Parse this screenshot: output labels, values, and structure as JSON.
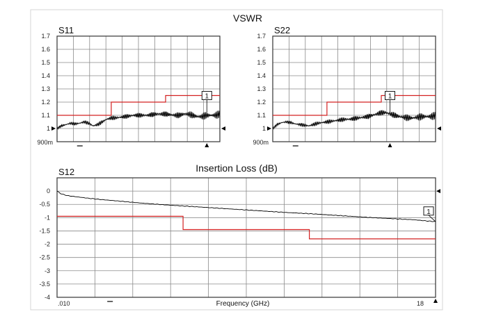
{
  "colors": {
    "frame": "#333333",
    "grid": "#8a8a8a",
    "trace": "#000000",
    "limit": "#d32020"
  },
  "vswr_title": "VSWR",
  "insertion_title": "Insertion Loss (dB)",
  "chart_data": [
    {
      "type": "line",
      "title": "S11",
      "ylim": [
        0.9,
        1.7
      ],
      "y_ticks": [
        "1.7",
        "1.6",
        "1.5",
        "1.4",
        "1.3",
        "1.2",
        "1.1",
        "1"
      ],
      "y_bottom_label": "900m",
      "grid": true,
      "marker_label": "1",
      "x_range": [
        0.01,
        18
      ],
      "series": [
        {
          "x": [
            0.01,
            0.5,
            1,
            1.5,
            2,
            2.5,
            3,
            3.5,
            4,
            4.5,
            5,
            5.5,
            6,
            6.5,
            7,
            7.5,
            8,
            8.5,
            9,
            9.5,
            10,
            10.5,
            11,
            11.5,
            12,
            12.5,
            13,
            13.5,
            14,
            14.5,
            15,
            15.5,
            16,
            16.5,
            17,
            17.5,
            18
          ],
          "values": [
            1.0,
            1.02,
            1.03,
            1.04,
            1.035,
            1.04,
            1.05,
            1.04,
            1.02,
            1.03,
            1.05,
            1.07,
            1.08,
            1.08,
            1.085,
            1.09,
            1.095,
            1.1,
            1.1,
            1.1,
            1.1,
            1.105,
            1.11,
            1.11,
            1.11,
            1.105,
            1.1,
            1.1,
            1.11,
            1.11,
            1.1,
            1.09,
            1.09,
            1.1,
            1.1,
            1.1,
            1.11
          ],
          "ripple": 0.03
        }
      ],
      "limit": {
        "x": [
          0.01,
          6,
          6,
          12,
          12,
          18
        ],
        "values": [
          1.1,
          1.1,
          1.2,
          1.2,
          1.25,
          1.25
        ]
      }
    },
    {
      "type": "line",
      "title": "S22",
      "ylim": [
        0.9,
        1.7
      ],
      "y_ticks": [
        "1.7",
        "1.6",
        "1.5",
        "1.4",
        "1.3",
        "1.2",
        "1.1",
        "1"
      ],
      "y_bottom_label": "900m",
      "grid": true,
      "marker_label": "1",
      "x_range": [
        0.01,
        18
      ],
      "series": [
        {
          "x": [
            0.01,
            0.5,
            1,
            1.5,
            2,
            2.5,
            3,
            3.5,
            4,
            4.5,
            5,
            5.5,
            6,
            6.5,
            7,
            7.5,
            8,
            8.5,
            9,
            9.5,
            10,
            10.5,
            11,
            11.5,
            12,
            12.5,
            13,
            13.5,
            14,
            14.5,
            15,
            15.5,
            16,
            16.5,
            17,
            17.5,
            18
          ],
          "values": [
            1.0,
            1.03,
            1.045,
            1.05,
            1.045,
            1.035,
            1.03,
            1.025,
            1.02,
            1.03,
            1.04,
            1.045,
            1.05,
            1.055,
            1.06,
            1.065,
            1.07,
            1.07,
            1.075,
            1.08,
            1.085,
            1.09,
            1.1,
            1.11,
            1.12,
            1.12,
            1.11,
            1.1,
            1.09,
            1.085,
            1.08,
            1.08,
            1.085,
            1.09,
            1.09,
            1.09,
            1.1
          ],
          "ripple": 0.03
        }
      ],
      "limit": {
        "x": [
          0.01,
          6,
          6,
          12,
          12,
          18
        ],
        "values": [
          1.1,
          1.1,
          1.2,
          1.2,
          1.25,
          1.25
        ]
      }
    },
    {
      "type": "line",
      "title": "S12",
      "xlabel": "Frequency (GHz)",
      "ylim": [
        -4,
        0.5
      ],
      "y_ticks": [
        "0",
        "-0.5",
        "-1",
        "-1.5",
        "-2",
        "-2.5",
        "-3",
        "-3.5",
        "-4"
      ],
      "x_start_label": ".010",
      "x_end_label": "18",
      "grid": true,
      "marker_label": "1",
      "x_range": [
        0.01,
        18
      ],
      "series": [
        {
          "x": [
            0.01,
            0.2,
            0.5,
            1,
            1.5,
            2,
            3,
            4,
            5,
            6,
            7,
            8,
            9,
            10,
            11,
            12,
            13,
            14,
            15,
            16,
            17,
            17.5,
            18
          ],
          "values": [
            0,
            -0.1,
            -0.17,
            -0.22,
            -0.27,
            -0.31,
            -0.38,
            -0.45,
            -0.51,
            -0.56,
            -0.61,
            -0.66,
            -0.71,
            -0.76,
            -0.81,
            -0.85,
            -0.9,
            -0.95,
            -1.0,
            -1.04,
            -1.08,
            -1.12,
            -1.15
          ],
          "ripple": 0.01
        }
      ],
      "limit": {
        "x": [
          0.01,
          6,
          6,
          12,
          12,
          18
        ],
        "values": [
          -0.95,
          -0.95,
          -1.45,
          -1.45,
          -1.8,
          -1.8
        ]
      }
    }
  ]
}
